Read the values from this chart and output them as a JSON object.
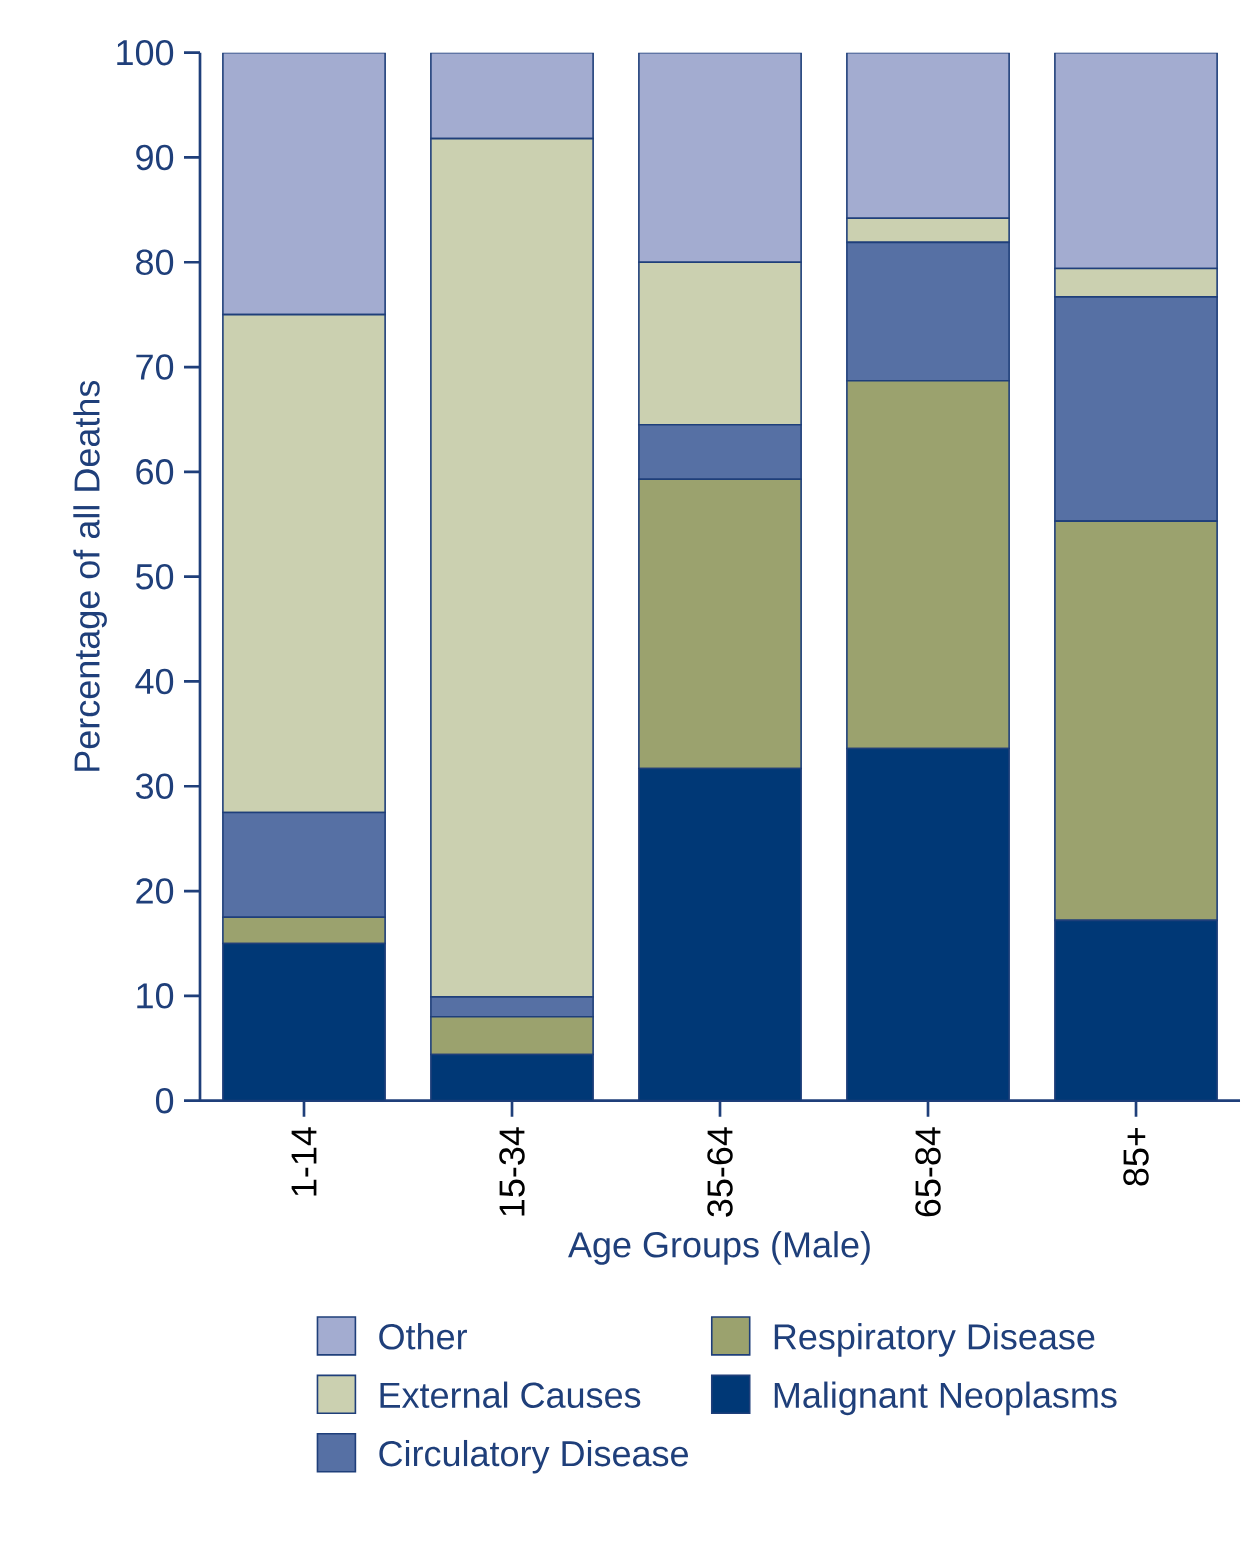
{
  "chart_data": {
    "type": "bar",
    "stacked": true,
    "xlabel": "Age Groups (Male)",
    "ylabel": "Percentage of all Deaths",
    "categories": [
      "1-14",
      "15-34",
      "35-64",
      "65-84",
      "85+"
    ],
    "series": [
      {
        "name": "Malignant Neoplasms",
        "color": "#003876",
        "values": [
          15,
          4.4,
          31.7,
          33.6,
          17.2
        ]
      },
      {
        "name": "Respiratory Disease",
        "color": "#9ba26e",
        "values": [
          2.5,
          3.6,
          27.6,
          35.1,
          38.1
        ]
      },
      {
        "name": "Circulatory Disease",
        "color": "#5670a4",
        "values": [
          10,
          1.9,
          5.2,
          13.2,
          21.4
        ]
      },
      {
        "name": "External Causes",
        "color": "#cbd0b0",
        "values": [
          47.5,
          81.9,
          15.5,
          2.3,
          2.7
        ]
      },
      {
        "name": "Other",
        "color": "#a3acd0",
        "values": [
          25,
          8.2,
          20,
          15.8,
          20.6
        ]
      }
    ],
    "ylim": [
      0,
      100
    ],
    "yticks": [
      0,
      10,
      20,
      30,
      40,
      50,
      60,
      70,
      80,
      90,
      100
    ],
    "grid": false,
    "legend": "bottom"
  }
}
